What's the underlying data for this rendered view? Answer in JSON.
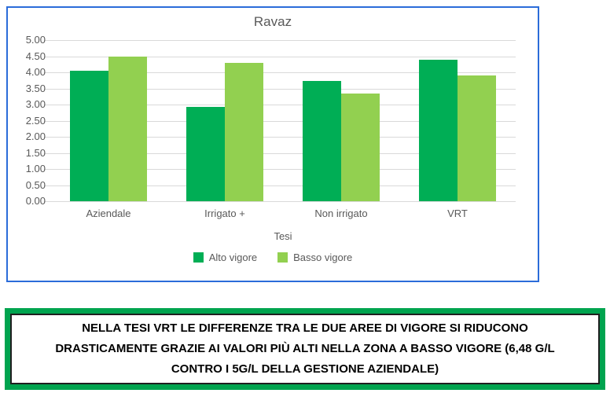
{
  "chart_data": {
    "type": "bar",
    "title": "Ravaz",
    "categories": [
      "Aziendale",
      "Irrigato +",
      "Non irrigato",
      "VRT"
    ],
    "series": [
      {
        "name": "Alto vigore",
        "color": "#00AE55",
        "values": [
          4.05,
          2.93,
          3.73,
          4.38
        ]
      },
      {
        "name": "Basso vigore",
        "color": "#92D050",
        "values": [
          4.48,
          4.3,
          3.33,
          3.9
        ]
      }
    ],
    "xlabel": "Tesi",
    "ylabel": "",
    "ylim": [
      0,
      5
    ],
    "ytick_step": 0.5,
    "ytick_labels": [
      "0.00",
      "0.50",
      "1.00",
      "1.50",
      "2.00",
      "2.50",
      "3.00",
      "3.50",
      "4.00",
      "4.50",
      "5.00"
    ],
    "grid": true,
    "legend_position": "bottom",
    "frame_border_color": "#2B6CD9",
    "gridline_color": "#D9D9D9",
    "text_color": "#595959"
  },
  "caption": {
    "text": "NELLA TESI VRT LE DIFFERENZE TRA LE DUE AREE DI VIGORE SI RIDUCONO DRASTICAMENTE GRAZIE AI VALORI PIÙ ALTI NELLA ZONA A BASSO VIGORE (6,48 G/L CONTRO I 5G/L DELLA GESTIONE AZIENDALE)",
    "border_color": "#00A44F"
  }
}
